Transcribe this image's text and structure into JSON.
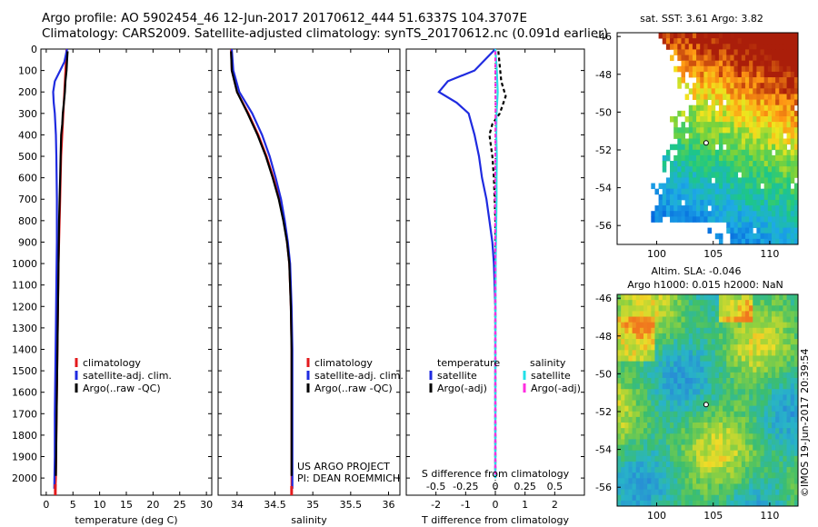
{
  "header": {
    "line1": "Argo profile: AO 5902454_46 12-Jun-2017 20170612_444 51.6337S 104.3707E",
    "line2": "Climatology: CARS2009. Satellite-adjusted climatology: synTS_20170612.nc (0.091d earlier)"
  },
  "colors": {
    "climatology": "#e31a1c",
    "satellite": "#1f2be0",
    "argo": "#000000",
    "sal_satellite": "#22e0e8",
    "sal_argo": "#ff2ee0"
  },
  "watermark": "©IMOS 19-Jun-2017 20:39:54",
  "chart_data": [
    {
      "id": "temperature",
      "type": "line",
      "xlabel": "temperature (deg C)",
      "xlim": [
        -1,
        31
      ],
      "xticks": [
        0,
        5,
        10,
        15,
        20,
        25,
        30
      ],
      "xtick_labels": [
        "0",
        "5",
        "10",
        "15",
        "20",
        "25",
        "30"
      ],
      "ylim": [
        2080,
        0
      ],
      "yticks": [
        0,
        100,
        200,
        300,
        400,
        500,
        600,
        700,
        800,
        900,
        1000,
        1100,
        1200,
        1300,
        1400,
        1500,
        1600,
        1700,
        1800,
        1900,
        2000
      ],
      "legend": {
        "position": "lower-middle",
        "entries": [
          "climatology",
          "satellite-adj. clim.",
          "Argo(..raw -QC)"
        ]
      },
      "series": [
        {
          "name": "climatology",
          "color": "#e31a1c",
          "x": [
            3.8,
            3.6,
            3.4,
            3.2,
            3.0,
            2.8,
            2.7,
            2.6,
            2.5,
            2.4,
            2.3,
            2.2,
            2.1,
            2.0,
            1.9,
            1.8,
            1.7
          ],
          "depth": [
            0,
            100,
            200,
            300,
            400,
            500,
            600,
            700,
            800,
            900,
            1000,
            1200,
            1400,
            1600,
            1800,
            2000,
            2060
          ]
        },
        {
          "name": "satellite-adj. clim.",
          "color": "#1f2be0",
          "x": [
            3.9,
            3.4,
            2.6,
            1.6,
            1.3,
            1.4,
            1.6,
            1.8,
            1.9,
            2.0,
            2.0,
            1.9,
            1.8,
            1.7,
            1.6,
            1.6,
            1.5
          ],
          "depth": [
            0,
            60,
            100,
            150,
            200,
            250,
            300,
            400,
            500,
            700,
            900,
            1100,
            1300,
            1500,
            1700,
            1900,
            2050
          ]
        },
        {
          "name": "Argo(..raw -QC)",
          "color": "#000000",
          "x": [
            4.0,
            3.9,
            3.8,
            3.6,
            3.5,
            3.3,
            3.1,
            3.0,
            2.8,
            2.7,
            2.6,
            2.5,
            2.4,
            2.3,
            2.2,
            2.1,
            2.0,
            1.9,
            1.8
          ],
          "depth": [
            10,
            50,
            100,
            150,
            200,
            250,
            300,
            350,
            400,
            500,
            600,
            700,
            800,
            1000,
            1200,
            1400,
            1600,
            1800,
            1990
          ]
        }
      ]
    },
    {
      "id": "salinity",
      "type": "line",
      "xlabel": "salinity",
      "xlim": [
        33.75,
        36.15
      ],
      "xticks": [
        34,
        34.5,
        35,
        35.5,
        36
      ],
      "xtick_labels": [
        "34",
        "34.5",
        "35",
        "35.5",
        "36"
      ],
      "ylim": [
        2080,
        0
      ],
      "legend": {
        "position": "lower-right",
        "entries": [
          "climatology",
          "satellite-adj. clim.",
          "Argo(..raw -QC)"
        ]
      },
      "annotation": [
        "US ARGO PROJECT",
        "PI: DEAN ROEMMICH"
      ],
      "series": [
        {
          "name": "climatology",
          "color": "#e31a1c",
          "x": [
            33.92,
            33.93,
            34.0,
            34.15,
            34.28,
            34.39,
            34.48,
            34.56,
            34.62,
            34.66,
            34.69,
            34.71,
            34.72,
            34.72,
            34.72,
            34.72
          ],
          "depth": [
            0,
            100,
            200,
            300,
            400,
            500,
            600,
            700,
            800,
            900,
            1000,
            1200,
            1400,
            1600,
            1800,
            2060
          ]
        },
        {
          "name": "satellite-adj. clim.",
          "color": "#1f2be0",
          "x": [
            33.93,
            33.95,
            34.03,
            34.2,
            34.33,
            34.43,
            34.51,
            34.58,
            34.63,
            34.67,
            34.7,
            34.72,
            34.73,
            34.73,
            34.73,
            34.73
          ],
          "depth": [
            0,
            100,
            200,
            300,
            400,
            500,
            600,
            700,
            800,
            900,
            1000,
            1200,
            1400,
            1600,
            1800,
            2050
          ]
        },
        {
          "name": "Argo(..raw -QC)",
          "color": "#000000",
          "x": [
            33.92,
            33.93,
            34.0,
            34.14,
            34.27,
            34.38,
            34.47,
            34.55,
            34.61,
            34.66,
            34.69,
            34.71,
            34.72,
            34.72,
            34.72
          ],
          "depth": [
            10,
            100,
            200,
            300,
            400,
            500,
            600,
            700,
            800,
            900,
            1000,
            1200,
            1400,
            1600,
            1990
          ]
        }
      ]
    },
    {
      "id": "differences",
      "type": "line",
      "xlabel": "T difference from climatology",
      "xlim": [
        -3,
        3
      ],
      "xticks": [
        -2,
        -1,
        0,
        1,
        2
      ],
      "xtick_labels": [
        "-2",
        "-1",
        "0",
        "1",
        "2"
      ],
      "secondary_xlabel": "S difference from climatology",
      "secondary_xticks": [
        -0.5,
        -0.25,
        0,
        0.25,
        0.5
      ],
      "secondary_xtick_labels": [
        "-0.5",
        "-0.25",
        "0",
        "0.25",
        "0.5"
      ],
      "secondary_xlim": [
        -0.75,
        0.75
      ],
      "ylim": [
        2080,
        0
      ],
      "legend": {
        "temperature_title": "temperature",
        "salinity_title": "salinity",
        "entries_t": [
          "satellite",
          "Argo(-adj)"
        ],
        "entries_s": [
          "satellite",
          "Argo(-adj)"
        ]
      },
      "series": [
        {
          "name": "T satellite",
          "color": "#1f2be0",
          "x": [
            0.0,
            -0.7,
            -1.6,
            -1.9,
            -1.3,
            -0.9,
            -0.7,
            -0.55,
            -0.45,
            -0.3,
            -0.2,
            -0.1,
            -0.05,
            0.0,
            0.0,
            0.0
          ],
          "depth": [
            0,
            100,
            150,
            200,
            250,
            300,
            400,
            500,
            600,
            700,
            800,
            900,
            1000,
            1200,
            1500,
            2000
          ]
        },
        {
          "name": "T Argo(-adj)",
          "color": "#000000",
          "dashed": true,
          "x": [
            0.1,
            0.2,
            0.35,
            0.15,
            -0.1,
            -0.2,
            -0.1,
            -0.05,
            0.0,
            0.0,
            0.0,
            0.0
          ],
          "depth": [
            10,
            150,
            220,
            300,
            350,
            400,
            500,
            600,
            800,
            1000,
            1400,
            1990
          ]
        },
        {
          "name": "S satellite",
          "color": "#22e0e8",
          "x": [
            0.0,
            0.05,
            0.08,
            0.04,
            0.03,
            0.05,
            0.04,
            0.04,
            0.03,
            0.02,
            0.01,
            0.0,
            0.0
          ],
          "depth": [
            0,
            100,
            200,
            300,
            400,
            500,
            600,
            700,
            800,
            900,
            1000,
            1400,
            2000
          ]
        },
        {
          "name": "S Argo(-adj)",
          "color": "#ff2ee0",
          "dashed": true,
          "x": [
            0.0,
            0.0,
            0.01,
            0.0,
            -0.01,
            0.0,
            0.0,
            0.0,
            0.0
          ],
          "depth": [
            10,
            100,
            300,
            500,
            700,
            900,
            1200,
            1600,
            1990
          ]
        }
      ]
    },
    {
      "id": "sst_map",
      "type": "heatmap",
      "title": "sat. SST: 3.61  Argo: 3.82",
      "xticks": [
        100,
        105,
        110
      ],
      "yticks": [
        -46,
        -48,
        -50,
        -52,
        -54,
        -56
      ],
      "xlim": [
        96.5,
        112.5
      ],
      "ylim": [
        -57,
        -45.8
      ]
    },
    {
      "id": "sla_map",
      "type": "heatmap",
      "title": "Altim. SLA: -0.046",
      "subtitle": "Argo h1000: 0.015 h2000: NaN",
      "xticks": [
        100,
        105,
        110
      ],
      "yticks": [
        -46,
        -48,
        -50,
        -52,
        -54,
        -56
      ],
      "xlim": [
        96.5,
        112.5
      ],
      "ylim": [
        -57,
        -45.8
      ]
    }
  ]
}
